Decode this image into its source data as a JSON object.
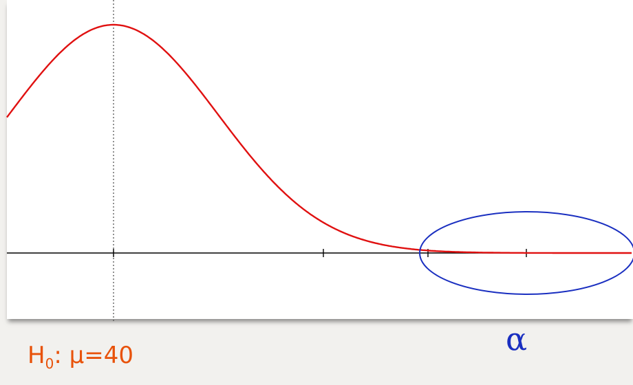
{
  "figure": {
    "hypothesis": {
      "prefix": "H",
      "subscript": "0",
      "rest": ": μ=40"
    },
    "alpha_symbol": "α",
    "colors": {
      "curve": "#e01010",
      "rejection_fill": "#ffd6da",
      "axis": "#000000",
      "mean_line": "#555555",
      "ellipse": "#1a2fc0",
      "hypothesis_text": "#e8520a",
      "alpha_text": "#1a2fc0"
    },
    "distribution": "normal",
    "shaded_region": "right-tail",
    "highlight": "ellipse-around-right-tail"
  }
}
